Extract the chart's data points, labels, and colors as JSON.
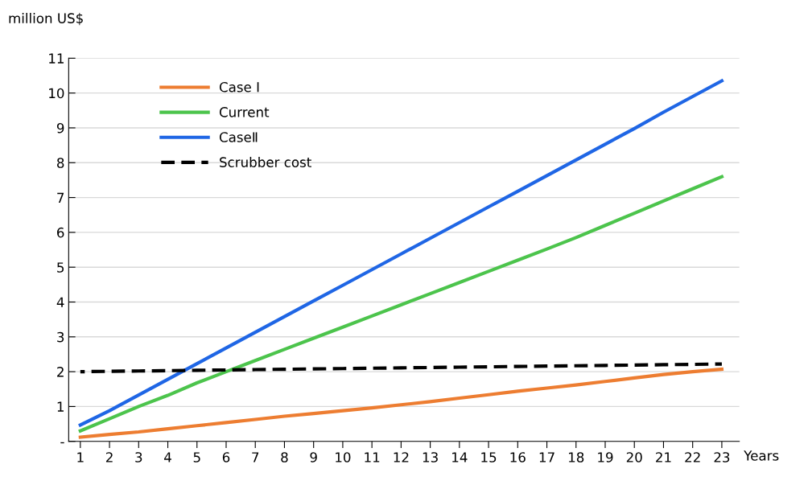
{
  "chart_data": {
    "type": "line",
    "ylabel": "million US$",
    "xlabel": "Years",
    "categories": [
      "1",
      "2",
      "3",
      "4",
      "5",
      "6",
      "7",
      "8",
      "9",
      "10",
      "11",
      "12",
      "13",
      "14",
      "15",
      "16",
      "17",
      "18",
      "19",
      "20",
      "21",
      "22",
      "23"
    ],
    "series": [
      {
        "name": "Case Ⅰ",
        "color": "#ed7d31",
        "values": [
          0.12,
          0.2,
          0.27,
          0.36,
          0.45,
          0.54,
          0.63,
          0.72,
          0.8,
          0.88,
          0.96,
          1.05,
          1.14,
          1.24,
          1.34,
          1.44,
          1.53,
          1.62,
          1.72,
          1.82,
          1.92,
          2.0,
          2.07
        ]
      },
      {
        "name": "Current",
        "color": "#4cc44c",
        "values": [
          0.3,
          0.65,
          1.0,
          1.32,
          1.68,
          2.0,
          2.32,
          2.64,
          2.96,
          3.28,
          3.6,
          3.92,
          4.24,
          4.56,
          4.88,
          5.2,
          5.52,
          5.85,
          6.2,
          6.55,
          6.9,
          7.25,
          7.6
        ]
      },
      {
        "name": "CaseⅡ",
        "color": "#1f66e5",
        "values": [
          0.47,
          0.88,
          1.33,
          1.78,
          2.23,
          2.68,
          3.13,
          3.58,
          4.03,
          4.48,
          4.93,
          5.38,
          5.83,
          6.28,
          6.73,
          7.18,
          7.63,
          8.08,
          8.53,
          8.98,
          9.45,
          9.9,
          10.35
        ]
      },
      {
        "name": "Scrubber cost",
        "color": "#000000",
        "line_style": "dashed",
        "values": [
          2.0,
          2.01,
          2.02,
          2.03,
          2.04,
          2.05,
          2.06,
          2.07,
          2.08,
          2.09,
          2.1,
          2.11,
          2.12,
          2.13,
          2.14,
          2.15,
          2.16,
          2.17,
          2.18,
          2.19,
          2.2,
          2.21,
          2.22
        ]
      }
    ],
    "ylim": [
      0,
      11
    ],
    "yticks": [
      {
        "value": 0,
        "label": "-"
      },
      1,
      2,
      3,
      4,
      5,
      6,
      7,
      8,
      9,
      10,
      11
    ],
    "grid": "y",
    "legend": "top left",
    "line_style": "solid"
  }
}
